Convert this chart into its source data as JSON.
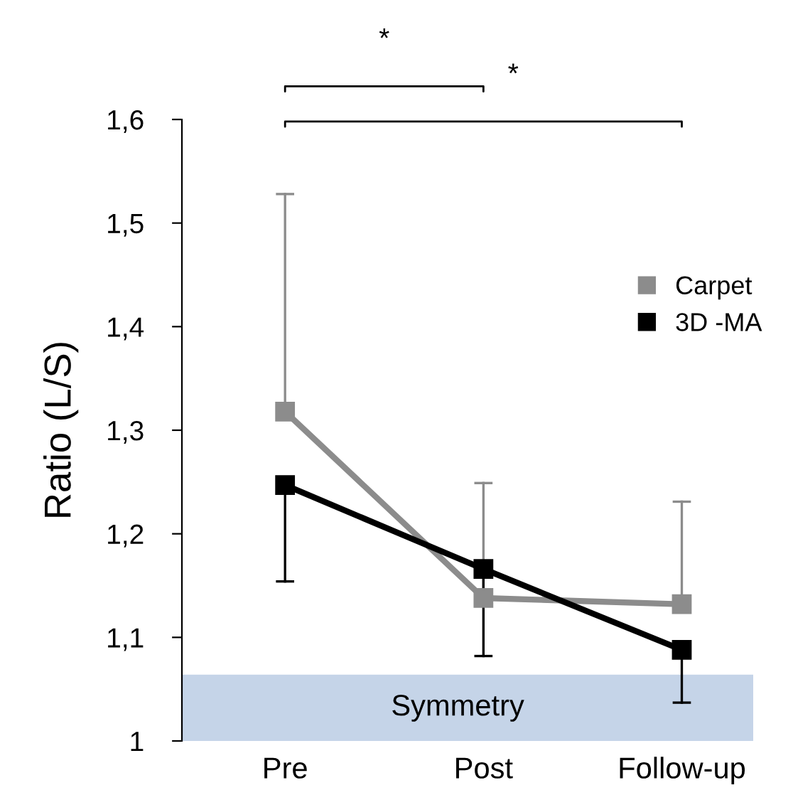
{
  "chart_data": {
    "type": "line",
    "ylabel": "Ratio (L/S)",
    "categories": [
      "Pre",
      "Post",
      "Follow-up"
    ],
    "series": [
      {
        "name": "Carpet",
        "color": "#8c8c8c",
        "values": [
          1.318,
          1.138,
          1.132
        ],
        "errors": [
          [
            1.318,
            1.528
          ],
          [
            1.138,
            1.249
          ],
          [
            1.132,
            1.231
          ]
        ]
      },
      {
        "name": "3D -MA",
        "color": "#000000",
        "values": [
          1.247,
          1.166,
          1.088
        ],
        "errors": [
          [
            1.154,
            1.247
          ],
          [
            1.082,
            1.166
          ],
          [
            1.037,
            1.088
          ]
        ]
      }
    ],
    "ylim": [
      1,
      1.6
    ],
    "yticks": [
      {
        "value": 1,
        "label": "1"
      },
      {
        "value": 1.1,
        "label": "1,1"
      },
      {
        "value": 1.2,
        "label": "1,2"
      },
      {
        "value": 1.3,
        "label": "1,3"
      },
      {
        "value": 1.4,
        "label": "1,4"
      },
      {
        "value": 1.5,
        "label": "1,5"
      },
      {
        "value": 1.6,
        "label": "1,6"
      }
    ],
    "bands": [
      {
        "axis": "y",
        "from": 1,
        "to": 1.064,
        "label": "Symmetry",
        "color": "#c5d4e8"
      }
    ],
    "annotations": [
      "*",
      "*"
    ],
    "marker": "square",
    "line_style": "solid",
    "grid": false,
    "legend": "right"
  }
}
